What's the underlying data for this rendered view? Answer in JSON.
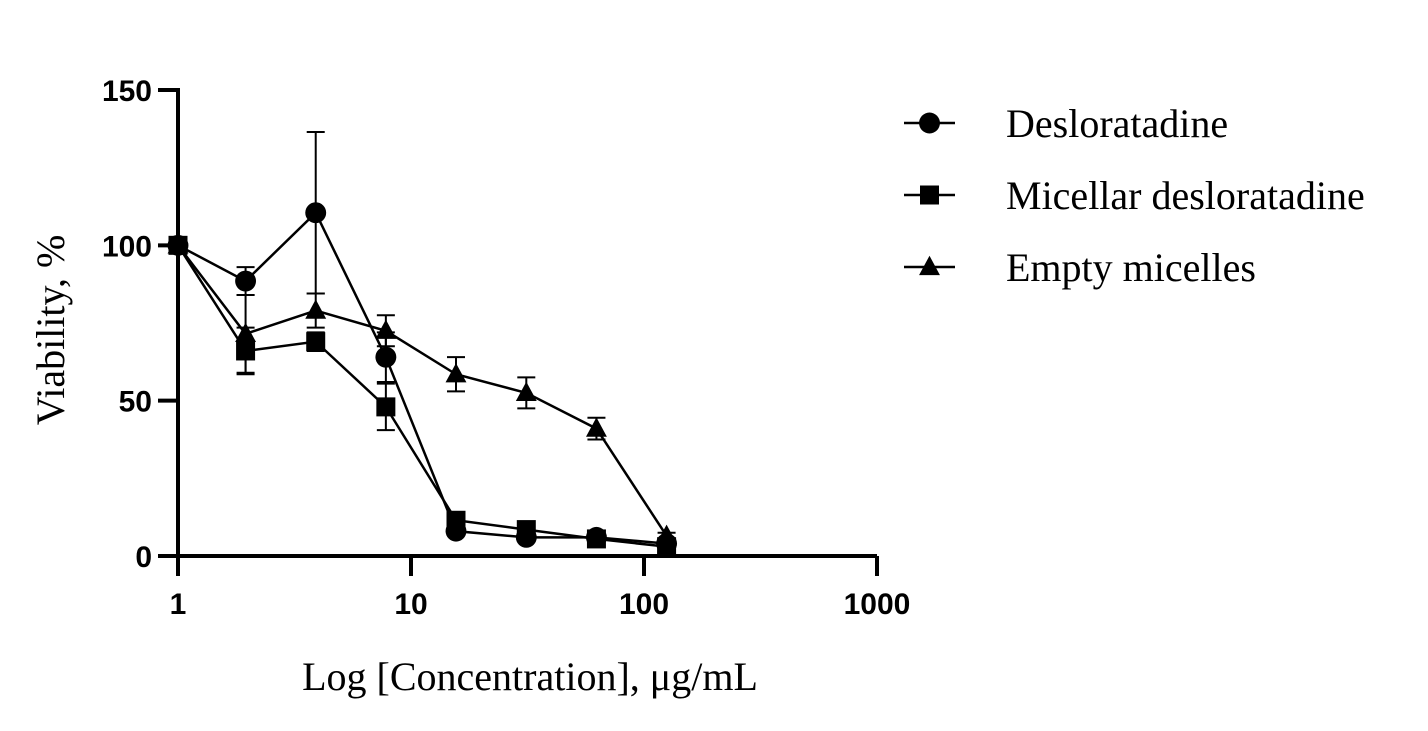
{
  "chart_data": {
    "type": "line",
    "xlabel": "Log [Concentration], μg/mL",
    "ylabel": "Viability, %",
    "x_scale": "log",
    "xlim": [
      1,
      1000
    ],
    "ylim": [
      0,
      150
    ],
    "x_ticks": [
      "1",
      "10",
      "100",
      "1000"
    ],
    "y_ticks": [
      "0",
      "50",
      "100",
      "150"
    ],
    "legend_position": "right",
    "grid": false,
    "x": [
      1,
      1.95,
      3.9,
      7.8,
      15.6,
      31.25,
      62.5,
      125
    ],
    "series": [
      {
        "name": "Desloratadine",
        "marker": "circle",
        "values": [
          100,
          88.5,
          110.5,
          64,
          8,
          6,
          6,
          4
        ],
        "errors": [
          0,
          4.5,
          26,
          8,
          1,
          1,
          1,
          1
        ]
      },
      {
        "name": "Micellar desloratadine",
        "marker": "square",
        "values": [
          100,
          66,
          69,
          48,
          11.5,
          8.5,
          5.5,
          3
        ],
        "errors": [
          0,
          7.5,
          3,
          7.5,
          1.5,
          1.5,
          1,
          1
        ]
      },
      {
        "name": "Empty micelles",
        "marker": "triangle",
        "values": [
          100,
          71.5,
          79,
          72.5,
          58.5,
          52.5,
          41,
          6.5
        ],
        "errors": [
          0,
          12.5,
          5.5,
          5,
          5.5,
          5,
          3.5,
          1
        ]
      }
    ]
  }
}
